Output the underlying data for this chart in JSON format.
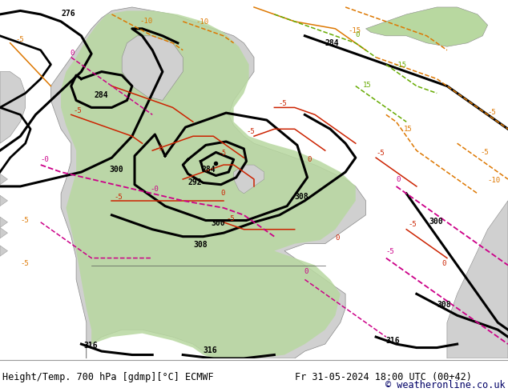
{
  "title_left": "Height/Temp. 700 hPa [gdmp][°C] ECMWF",
  "title_right": "Fr 31-05-2024 18:00 UTC (00+42)",
  "copyright": "© weatheronline.co.uk",
  "bg_color": "#ffffff",
  "ocean_color": "#e8e8e8",
  "land_green": "#b8d8a0",
  "land_grey": "#c8c8c8",
  "footer_line_color": "#999999",
  "black_lw": 2.2,
  "temp_lw": 1.1
}
